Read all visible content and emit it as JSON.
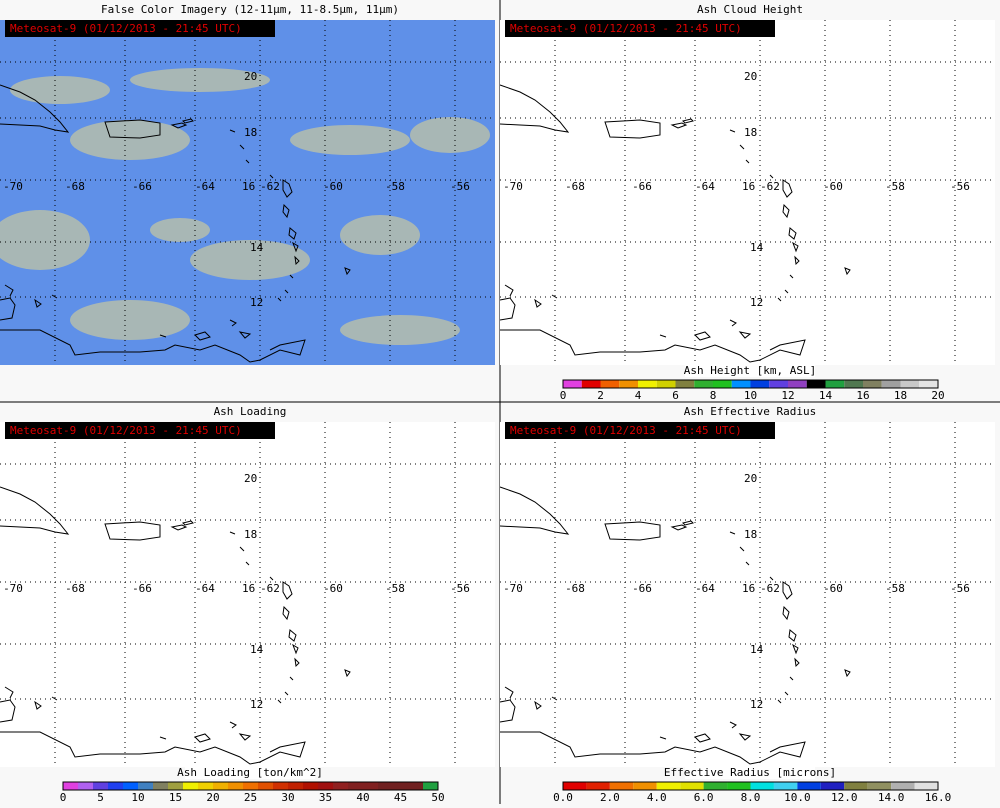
{
  "panels": [
    {
      "title": "False Color Imagery (12-11μm, 11-8.5μm, 11μm)",
      "timestamp": "Meteosat-9  (01/12/2013 - 21:45 UTC)",
      "lat_labels": [
        "20",
        "18",
        "16",
        "14",
        "12"
      ],
      "lon_labels": [
        "-70",
        "-68",
        "-66",
        "-64",
        "-62",
        "-60",
        "-58",
        "-56"
      ]
    },
    {
      "title": "Ash Cloud Height",
      "timestamp": "Meteosat-9  (01/12/2013 - 21:45 UTC)",
      "lat_labels": [
        "20",
        "18",
        "16",
        "14",
        "12"
      ],
      "lon_labels": [
        "-70",
        "-68",
        "-66",
        "-64",
        "-62",
        "-60",
        "-58",
        "-56"
      ],
      "colorbar": {
        "title": "Ash Height [km, ASL]",
        "ticks": [
          "0",
          "2",
          "4",
          "6",
          "8",
          "10",
          "12",
          "14",
          "16",
          "18",
          "20"
        ],
        "colors": [
          "#e040e0",
          "#e00000",
          "#f06000",
          "#f09000",
          "#f0f000",
          "#d0d000",
          "#808040",
          "#30b030",
          "#20c020",
          "#0090ff",
          "#0040e0",
          "#6040e0",
          "#9040c0",
          "#000000",
          "#20a040",
          "#507850",
          "#808060",
          "#a0a0a0",
          "#c8c8c8",
          "#e4e4e4"
        ]
      }
    },
    {
      "title": "Ash Loading",
      "timestamp": "Meteosat-9  (01/12/2013 - 21:45 UTC)",
      "lat_labels": [
        "20",
        "18",
        "16",
        "14",
        "12"
      ],
      "lon_labels": [
        "-70",
        "-68",
        "-66",
        "-64",
        "-62",
        "-60",
        "-58",
        "-56"
      ],
      "colorbar": {
        "title": "Ash Loading [ton/km^2]",
        "ticks": [
          "0",
          "5",
          "10",
          "15",
          "20",
          "25",
          "30",
          "35",
          "40",
          "45",
          "50"
        ],
        "colors": [
          "#e040e0",
          "#b060f0",
          "#6040e0",
          "#2040f0",
          "#0060ff",
          "#4080c0",
          "#808060",
          "#a0a040",
          "#f0f000",
          "#f0d000",
          "#f0b000",
          "#f09000",
          "#f07000",
          "#e05000",
          "#d03000",
          "#c02000",
          "#b01000",
          "#a01010",
          "#902020",
          "#802020",
          "#802020",
          "#702020",
          "#702020",
          "#702020",
          "#20a040"
        ]
      }
    },
    {
      "title": "Ash Effective Radius",
      "timestamp": "Meteosat-9  (01/12/2013 - 21:45 UTC)",
      "lat_labels": [
        "20",
        "18",
        "16",
        "14",
        "12"
      ],
      "lon_labels": [
        "-70",
        "-68",
        "-66",
        "-64",
        "-62",
        "-60",
        "-58",
        "-56"
      ],
      "colorbar": {
        "title": "Effective Radius [microns]",
        "ticks": [
          "0.0",
          "2.0",
          "4.0",
          "6.0",
          "8.0",
          "10.0",
          "12.0",
          "14.0",
          "16.0"
        ],
        "colors": [
          "#e00000",
          "#e02000",
          "#f07000",
          "#f09000",
          "#f0f000",
          "#e0e000",
          "#30b030",
          "#20c020",
          "#00e0e0",
          "#40d0f0",
          "#0040e0",
          "#2020c0",
          "#808040",
          "#909060",
          "#b0b0b0",
          "#e0e0e0"
        ]
      }
    }
  ]
}
